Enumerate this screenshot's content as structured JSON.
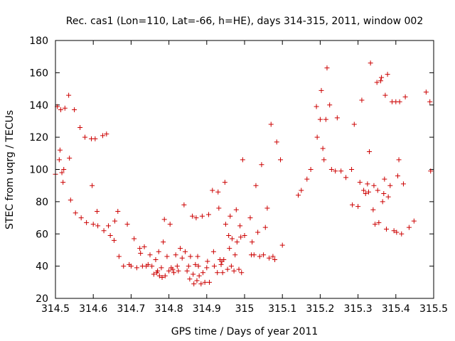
{
  "chart_data": {
    "type": "scatter",
    "title": "Rec. cas1 (Lon=110, Lat=-66, h=HE), days 314-315, 2011, window 002",
    "xlabel": "GPS time / Days of year 2011",
    "ylabel": "STEC from uqrg / TECUs",
    "xlim": [
      314.5,
      315.5
    ],
    "ylim": [
      20,
      180
    ],
    "xticks": [
      "314.5",
      "314.6",
      "314.7",
      "314.8",
      "314.9",
      "315",
      "315.1",
      "315.2",
      "315.3",
      "315.4",
      "315.5"
    ],
    "yticks": [
      "20",
      "40",
      "60",
      "80",
      "100",
      "120",
      "140",
      "160",
      "180"
    ],
    "grid": false,
    "marker": "plus",
    "color": "#cc0000",
    "points": [
      [
        314.5,
        97
      ],
      [
        314.505,
        139
      ],
      [
        314.51,
        106
      ],
      [
        314.512,
        112
      ],
      [
        314.514,
        137
      ],
      [
        314.517,
        98
      ],
      [
        314.52,
        92
      ],
      [
        314.522,
        100
      ],
      [
        314.525,
        138
      ],
      [
        314.535,
        146
      ],
      [
        314.537,
        107
      ],
      [
        314.54,
        81
      ],
      [
        314.55,
        137
      ],
      [
        314.553,
        73
      ],
      [
        314.565,
        126
      ],
      [
        314.568,
        70
      ],
      [
        314.578,
        120
      ],
      [
        314.582,
        67
      ],
      [
        314.595,
        119
      ],
      [
        314.597,
        90
      ],
      [
        314.6,
        66
      ],
      [
        314.605,
        119
      ],
      [
        314.61,
        74
      ],
      [
        314.612,
        65
      ],
      [
        314.625,
        121
      ],
      [
        314.628,
        62
      ],
      [
        314.635,
        122
      ],
      [
        314.64,
        65
      ],
      [
        314.645,
        59
      ],
      [
        314.655,
        56
      ],
      [
        314.657,
        68
      ],
      [
        314.665,
        74
      ],
      [
        314.668,
        46
      ],
      [
        314.68,
        40
      ],
      [
        314.69,
        66
      ],
      [
        314.695,
        41
      ],
      [
        314.7,
        40
      ],
      [
        314.708,
        57
      ],
      [
        314.715,
        39
      ],
      [
        314.723,
        51
      ],
      [
        314.725,
        48
      ],
      [
        314.73,
        40
      ],
      [
        314.735,
        52
      ],
      [
        314.74,
        40
      ],
      [
        314.745,
        41
      ],
      [
        314.75,
        47
      ],
      [
        314.755,
        40
      ],
      [
        314.76,
        35
      ],
      [
        314.765,
        44
      ],
      [
        314.768,
        36
      ],
      [
        314.77,
        37
      ],
      [
        314.773,
        49
      ],
      [
        314.775,
        34
      ],
      [
        314.78,
        39
      ],
      [
        314.782,
        33
      ],
      [
        314.785,
        55
      ],
      [
        314.788,
        69
      ],
      [
        314.79,
        34
      ],
      [
        314.795,
        46
      ],
      [
        314.8,
        37
      ],
      [
        314.803,
        66
      ],
      [
        314.806,
        39
      ],
      [
        314.81,
        38
      ],
      [
        314.813,
        36
      ],
      [
        314.818,
        47
      ],
      [
        314.822,
        40
      ],
      [
        314.825,
        37
      ],
      [
        314.83,
        51
      ],
      [
        314.835,
        45
      ],
      [
        314.84,
        78
      ],
      [
        314.843,
        49
      ],
      [
        314.848,
        37
      ],
      [
        314.852,
        40
      ],
      [
        314.855,
        32
      ],
      [
        314.857,
        46
      ],
      [
        314.862,
        71
      ],
      [
        314.864,
        35
      ],
      [
        314.866,
        29
      ],
      [
        314.87,
        41
      ],
      [
        314.872,
        70
      ],
      [
        314.874,
        31
      ],
      [
        314.876,
        46
      ],
      [
        314.878,
        40
      ],
      [
        314.88,
        34
      ],
      [
        314.885,
        29
      ],
      [
        314.888,
        71
      ],
      [
        314.89,
        36
      ],
      [
        314.895,
        30
      ],
      [
        314.9,
        39
      ],
      [
        314.902,
        43
      ],
      [
        314.905,
        72
      ],
      [
        314.907,
        30
      ],
      [
        314.915,
        87
      ],
      [
        314.918,
        49
      ],
      [
        314.92,
        40
      ],
      [
        314.928,
        36
      ],
      [
        314.93,
        86
      ],
      [
        314.932,
        76
      ],
      [
        314.935,
        44
      ],
      [
        314.938,
        41
      ],
      [
        314.94,
        43
      ],
      [
        314.942,
        36
      ],
      [
        314.945,
        44
      ],
      [
        314.948,
        92
      ],
      [
        314.95,
        66
      ],
      [
        314.955,
        38
      ],
      [
        314.958,
        59
      ],
      [
        314.96,
        51
      ],
      [
        314.962,
        71
      ],
      [
        314.965,
        40
      ],
      [
        314.967,
        57
      ],
      [
        314.972,
        37
      ],
      [
        314.975,
        47
      ],
      [
        314.978,
        75
      ],
      [
        314.98,
        55
      ],
      [
        314.985,
        38
      ],
      [
        314.988,
        65
      ],
      [
        314.99,
        58
      ],
      [
        314.992,
        36
      ],
      [
        314.995,
        106
      ],
      [
        315.0,
        59
      ],
      [
        315.015,
        70
      ],
      [
        315.018,
        47
      ],
      [
        315.02,
        55
      ],
      [
        315.025,
        47
      ],
      [
        315.03,
        90
      ],
      [
        315.035,
        61
      ],
      [
        315.04,
        46
      ],
      [
        315.045,
        103
      ],
      [
        315.05,
        47
      ],
      [
        315.055,
        64
      ],
      [
        315.06,
        76
      ],
      [
        315.065,
        45
      ],
      [
        315.07,
        128
      ],
      [
        315.075,
        46
      ],
      [
        315.08,
        44
      ],
      [
        315.085,
        117
      ],
      [
        315.095,
        106
      ],
      [
        315.1,
        53
      ],
      [
        315.142,
        84
      ],
      [
        315.15,
        87
      ],
      [
        315.165,
        94
      ],
      [
        315.175,
        100
      ],
      [
        315.19,
        139
      ],
      [
        315.192,
        120
      ],
      [
        315.2,
        131
      ],
      [
        315.203,
        149
      ],
      [
        315.207,
        113
      ],
      [
        315.21,
        106
      ],
      [
        315.215,
        131
      ],
      [
        315.218,
        163
      ],
      [
        315.225,
        140
      ],
      [
        315.23,
        100
      ],
      [
        315.24,
        99
      ],
      [
        315.245,
        132
      ],
      [
        315.255,
        99
      ],
      [
        315.268,
        95
      ],
      [
        315.283,
        100
      ],
      [
        315.285,
        78
      ],
      [
        315.29,
        128
      ],
      [
        315.3,
        77
      ],
      [
        315.305,
        92
      ],
      [
        315.31,
        143
      ],
      [
        315.315,
        87
      ],
      [
        315.32,
        85
      ],
      [
        315.325,
        91
      ],
      [
        315.328,
        86
      ],
      [
        315.33,
        111
      ],
      [
        315.333,
        166
      ],
      [
        315.34,
        75
      ],
      [
        315.342,
        90
      ],
      [
        315.345,
        66
      ],
      [
        315.35,
        154
      ],
      [
        315.352,
        87
      ],
      [
        315.355,
        67
      ],
      [
        315.36,
        155
      ],
      [
        315.362,
        157
      ],
      [
        315.365,
        80
      ],
      [
        315.368,
        85
      ],
      [
        315.37,
        94
      ],
      [
        315.372,
        146
      ],
      [
        315.375,
        63
      ],
      [
        315.378,
        159
      ],
      [
        315.38,
        83
      ],
      [
        315.385,
        90
      ],
      [
        315.39,
        142
      ],
      [
        315.395,
        62
      ],
      [
        315.4,
        142
      ],
      [
        315.402,
        61
      ],
      [
        315.405,
        96
      ],
      [
        315.408,
        106
      ],
      [
        315.41,
        142
      ],
      [
        315.415,
        60
      ],
      [
        315.42,
        91
      ],
      [
        315.425,
        145
      ],
      [
        315.435,
        64
      ],
      [
        315.448,
        68
      ],
      [
        315.48,
        148
      ],
      [
        315.49,
        142
      ],
      [
        315.492,
        99
      ]
    ]
  }
}
